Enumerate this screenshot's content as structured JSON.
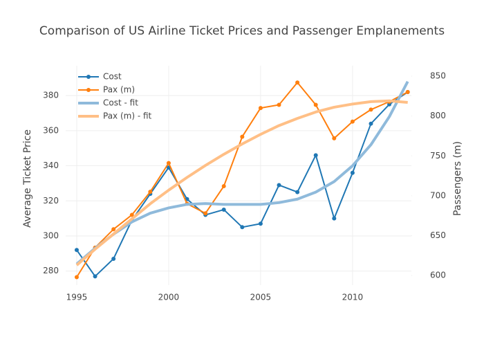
{
  "chart_data": {
    "type": "line",
    "title": "Comparison of US Airline Ticket Prices and Passenger Emplanements",
    "y_label": "Average Ticket Price",
    "y2_label": "Passengers (m)",
    "x": [
      1995,
      1996,
      1997,
      1998,
      1999,
      2000,
      2001,
      2002,
      2003,
      2004,
      2005,
      2006,
      2007,
      2008,
      2009,
      2010,
      2011,
      2012,
      2013
    ],
    "xlim": [
      1994.4,
      2013.2
    ],
    "xticks": [
      1995,
      2000,
      2005,
      2010
    ],
    "ylim": [
      272,
      397
    ],
    "yticks": [
      280,
      300,
      320,
      340,
      360,
      380
    ],
    "y2lim": [
      588,
      863
    ],
    "y2ticks": [
      600,
      650,
      700,
      750,
      800,
      850
    ],
    "grid": true,
    "legend": "top-left",
    "series": [
      {
        "name": "Cost",
        "color": "#1f77b4",
        "markers": true,
        "width": 2,
        "values": [
          292,
          277,
          287,
          309,
          324,
          339,
          321,
          312,
          315,
          305,
          307,
          329,
          325,
          346,
          310,
          336,
          364,
          375,
          382
        ]
      },
      {
        "name": "Pax (m)",
        "color": "#ff7f0e",
        "markers": true,
        "width": 2,
        "axis": "y2",
        "values": [
          598,
          635,
          658,
          676,
          705,
          741,
          690,
          678,
          712,
          774,
          810,
          814,
          842,
          814,
          772,
          793,
          808,
          818,
          830
        ]
      },
      {
        "name": "Cost - fit",
        "color": "#8fbadb",
        "markers": false,
        "width": 4,
        "values": [
          284,
          293,
          301,
          308,
          313,
          316,
          318,
          318.5,
          318,
          318,
          318,
          319,
          321,
          325,
          331,
          340,
          352,
          368,
          388
        ]
      },
      {
        "name": "Pax (m) - fit",
        "color": "#ffbf86",
        "markers": false,
        "width": 4,
        "axis": "y2",
        "values": [
          613,
          633,
          652,
          671,
          690,
          707,
          723,
          738,
          752,
          765,
          777,
          788,
          797,
          805,
          811,
          815,
          818,
          819,
          817
        ]
      }
    ]
  }
}
